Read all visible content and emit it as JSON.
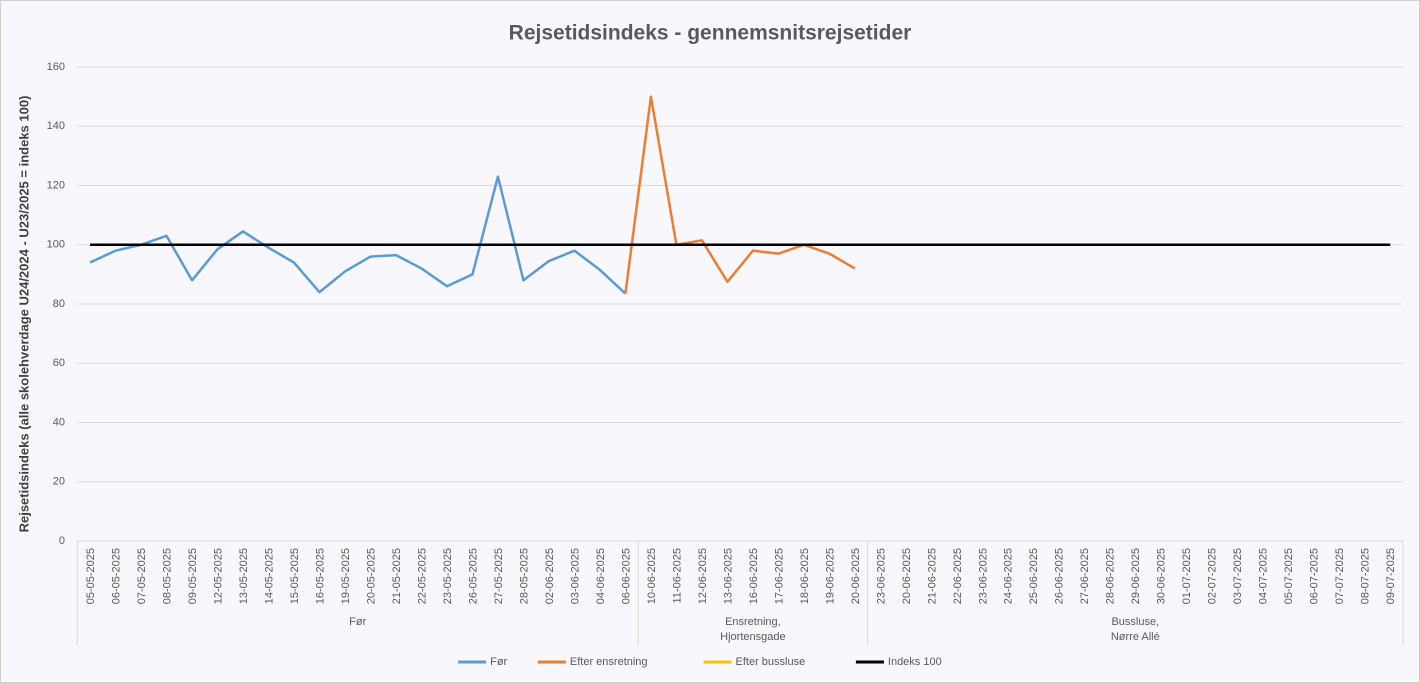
{
  "chart_data": {
    "type": "line",
    "title": "Rejsetidsindeks - gennemsnitsrejsetider",
    "y_label": "Rejsetidsindeks (alle skolehverdage U24/2024 - U23/2025 = indeks 100)",
    "categories": [
      "05-05-2025",
      "06-05-2025",
      "07-05-2025",
      "08-05-2025",
      "09-05-2025",
      "12-05-2025",
      "13-05-2025",
      "14-05-2025",
      "15-05-2025",
      "16-05-2025",
      "19-05-2025",
      "20-05-2025",
      "21-05-2025",
      "22-05-2025",
      "23-05-2025",
      "26-05-2025",
      "27-05-2025",
      "28-05-2025",
      "02-06-2025",
      "03-06-2025",
      "04-06-2025",
      "06-06-2025",
      "10-06-2025",
      "11-06-2025",
      "12-06-2025",
      "13-06-2025",
      "16-06-2025",
      "17-06-2025",
      "18-06-2025",
      "19-06-2025",
      "20-06-2025",
      "23-06-2025",
      "20-06-2025",
      "21-06-2025",
      "22-06-2025",
      "23-06-2025",
      "24-06-2025",
      "25-06-2025",
      "26-06-2025",
      "27-06-2025",
      "28-06-2025",
      "29-06-2025",
      "30-06-2025",
      "01-07-2025",
      "02-07-2025",
      "03-07-2025",
      "04-07-2025",
      "05-07-2025",
      "06-07-2025",
      "07-07-2025",
      "08-07-2025",
      "09-07-2025"
    ],
    "groups": [
      {
        "name": "Før",
        "count": 22
      },
      {
        "name": "Ensretning,\nHjortensgade",
        "count": 9
      },
      {
        "name": "Bussluse,\nNørre Allé",
        "count": 21
      }
    ],
    "series": [
      {
        "name": "Før",
        "color": "#5b9bd5",
        "values": [
          94,
          98,
          100,
          103,
          88,
          98.5,
          104.5,
          99,
          94,
          84,
          91,
          96,
          96.5,
          92,
          86,
          90,
          123,
          88,
          94.5,
          98,
          91.5,
          83.5,
          null,
          null,
          null,
          null,
          null,
          null,
          null,
          null,
          null,
          null,
          null,
          null,
          null,
          null,
          null,
          null,
          null,
          null,
          null,
          null,
          null,
          null,
          null,
          null,
          null,
          null,
          null,
          null,
          null,
          null
        ]
      },
      {
        "name": "Efter ensretning",
        "color": "#ed7d31",
        "values": [
          null,
          null,
          null,
          null,
          null,
          null,
          null,
          null,
          null,
          null,
          null,
          null,
          null,
          null,
          null,
          null,
          null,
          null,
          null,
          null,
          null,
          83.5,
          150,
          100,
          101.5,
          87.5,
          98,
          97,
          100,
          97,
          92,
          null,
          null,
          null,
          null,
          null,
          null,
          null,
          null,
          null,
          null,
          null,
          null,
          null,
          null,
          null,
          null,
          null,
          null,
          null,
          null,
          null
        ]
      },
      {
        "name": "Efter bussluse",
        "color": "#ffc000",
        "values": [
          null,
          null,
          null,
          null,
          null,
          null,
          null,
          null,
          null,
          null,
          null,
          null,
          null,
          null,
          null,
          null,
          null,
          null,
          null,
          null,
          null,
          null,
          null,
          null,
          null,
          null,
          null,
          null,
          null,
          null,
          null,
          null,
          null,
          null,
          null,
          null,
          null,
          null,
          null,
          null,
          null,
          null,
          null,
          null,
          null,
          null,
          null,
          null,
          null,
          null,
          null,
          null
        ]
      },
      {
        "name": "Indeks 100",
        "color": "#000000",
        "values": [
          100,
          100,
          100,
          100,
          100,
          100,
          100,
          100,
          100,
          100,
          100,
          100,
          100,
          100,
          100,
          100,
          100,
          100,
          100,
          100,
          100,
          100,
          100,
          100,
          100,
          100,
          100,
          100,
          100,
          100,
          100,
          100,
          100,
          100,
          100,
          100,
          100,
          100,
          100,
          100,
          100,
          100,
          100,
          100,
          100,
          100,
          100,
          100,
          100,
          100,
          100,
          100
        ]
      }
    ],
    "ylim": [
      0,
      160
    ],
    "yticks": [
      0,
      20,
      40,
      60,
      80,
      100,
      120,
      140,
      160
    ],
    "grid": true,
    "legend": "bottom"
  }
}
